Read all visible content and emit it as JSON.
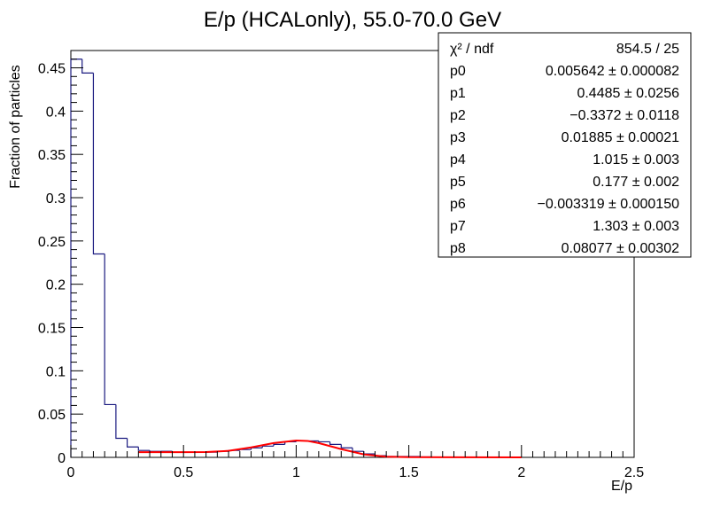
{
  "chart_data": {
    "type": "histogram",
    "title": "E/p (HCALonly), 55.0-70.0 GeV",
    "xlabel": "E/p",
    "ylabel": "Fraction of particles",
    "xlim": [
      0,
      2.5
    ],
    "ylim": [
      0,
      0.47
    ],
    "xticks": [
      0,
      0.5,
      1,
      1.5,
      2,
      2.5
    ],
    "yticks": [
      0,
      0.05,
      0.1,
      0.15,
      0.2,
      0.25,
      0.3,
      0.35,
      0.4,
      0.45
    ],
    "bin_width": 0.05,
    "histogram": {
      "color": "#1a1a80",
      "bin_low_edges": [
        0.0,
        0.05,
        0.1,
        0.15,
        0.2,
        0.25,
        0.3,
        0.35,
        0.4,
        0.45,
        0.5,
        0.55,
        0.6,
        0.65,
        0.7,
        0.75,
        0.8,
        0.85,
        0.9,
        0.95,
        1.0,
        1.05,
        1.1,
        1.15,
        1.2,
        1.25,
        1.3,
        1.35,
        1.4,
        1.45,
        1.5,
        1.55
      ],
      "values": [
        0.46,
        0.444,
        0.235,
        0.061,
        0.022,
        0.012,
        0.008,
        0.007,
        0.007,
        0.006,
        0.006,
        0.006,
        0.006,
        0.007,
        0.008,
        0.009,
        0.011,
        0.013,
        0.015,
        0.018,
        0.019,
        0.019,
        0.018,
        0.015,
        0.011,
        0.007,
        0.004,
        0.002,
        0.001,
        0.001,
        0.001,
        0.0005
      ]
    },
    "fit": {
      "color": "#ff0000",
      "x_range": [
        0.3,
        2.0
      ],
      "points": [
        [
          0.3,
          0.006
        ],
        [
          0.4,
          0.006
        ],
        [
          0.5,
          0.006
        ],
        [
          0.6,
          0.0062
        ],
        [
          0.7,
          0.0075
        ],
        [
          0.8,
          0.0115
        ],
        [
          0.9,
          0.0165
        ],
        [
          1.0,
          0.0195
        ],
        [
          1.05,
          0.019
        ],
        [
          1.1,
          0.0165
        ],
        [
          1.2,
          0.0095
        ],
        [
          1.3,
          0.0035
        ],
        [
          1.4,
          0.0008
        ],
        [
          1.5,
          0.0003
        ],
        [
          1.7,
          0.0001
        ],
        [
          2.0,
          0.0
        ]
      ]
    },
    "stats_box": {
      "rows": [
        {
          "name": "χ² / ndf",
          "value": "854.5 / 25"
        },
        {
          "name": "p0",
          "value": "0.005642 ± 0.000082"
        },
        {
          "name": "p1",
          "value": "0.4485 ± 0.0256"
        },
        {
          "name": "p2",
          "value": "−0.3372 ± 0.0118"
        },
        {
          "name": "p3",
          "value": "0.01885 ± 0.00021"
        },
        {
          "name": "p4",
          "value": "1.015 ± 0.003"
        },
        {
          "name": "p5",
          "value": "0.177 ± 0.002"
        },
        {
          "name": "p6",
          "value": "−0.003319 ± 0.000150"
        },
        {
          "name": "p7",
          "value": "1.303 ± 0.003"
        },
        {
          "name": "p8",
          "value": "0.08077 ± 0.00302"
        }
      ]
    }
  }
}
